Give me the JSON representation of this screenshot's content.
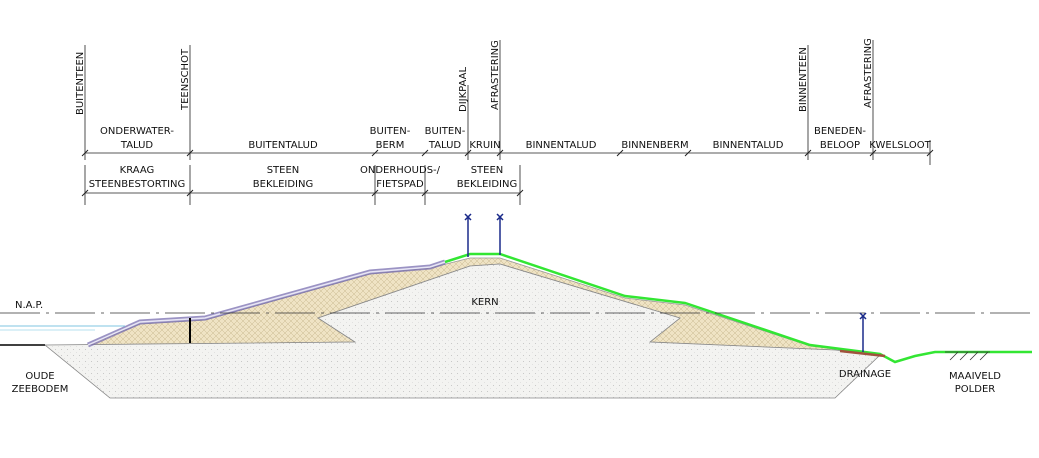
{
  "markers": [
    "BUITENTEEN",
    "TEENSCHOT",
    "DIJKPAAL",
    "AFRASTERING",
    "BINNENTEEN",
    "AFRASTERING"
  ],
  "zones": [
    {
      "lines": [
        "ONDERWATER-",
        "TALUD"
      ]
    },
    {
      "lines": [
        "BUITENTALUD"
      ]
    },
    {
      "lines": [
        "BUITEN-",
        "BERM"
      ]
    },
    {
      "lines": [
        "BUITEN-",
        "TALUD"
      ]
    },
    {
      "lines": [
        "KRUIN"
      ]
    },
    {
      "lines": [
        "BINNENTALUD"
      ]
    },
    {
      "lines": [
        "BINNENBERM"
      ]
    },
    {
      "lines": [
        "BINNENTALUD"
      ]
    },
    {
      "lines": [
        "BENEDEN-",
        "BELOOP"
      ]
    },
    {
      "lines": [
        "KWELSLOOT"
      ]
    }
  ],
  "materials": [
    {
      "lines": [
        "KRAAG",
        "STEENBESTORTING"
      ]
    },
    {
      "lines": [
        "STEEN",
        "BEKLEIDING"
      ]
    },
    {
      "lines": [
        "ONDERHOUDS-/",
        "FIETSPAD"
      ]
    },
    {
      "lines": [
        "STEEN",
        "BEKLEIDING"
      ]
    }
  ],
  "section": {
    "reference_level": "N.A.P.",
    "core": "KERN",
    "seabed": {
      "lines": [
        "OUDE",
        "ZEEBODEM"
      ]
    },
    "drainage": "DRAINAGE",
    "polder": {
      "lines": [
        "MAAIVELD",
        "POLDER"
      ]
    }
  }
}
